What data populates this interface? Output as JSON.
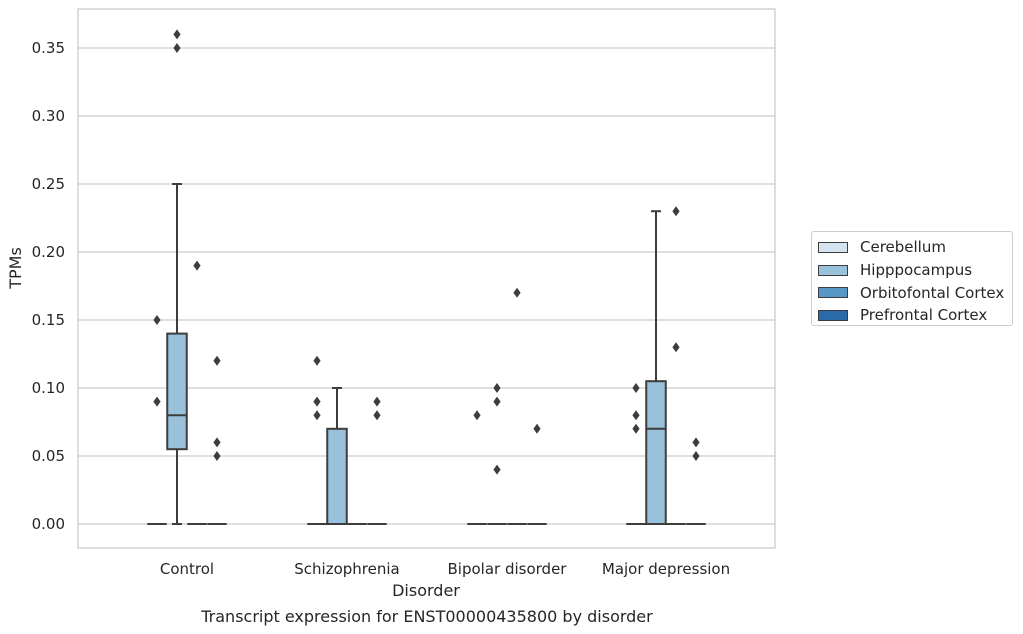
{
  "chart_data": {
    "type": "box",
    "title": "",
    "caption": "Transcript expression for ENST00000435800 by disorder",
    "xlabel": "Disorder",
    "ylabel": "TPMs",
    "ylim": [
      -0.018,
      0.378
    ],
    "yticks": [
      "0.00",
      "0.05",
      "0.10",
      "0.15",
      "0.20",
      "0.25",
      "0.30",
      "0.35"
    ],
    "ytick_values": [
      0,
      0.05,
      0.1,
      0.15,
      0.2,
      0.25,
      0.3,
      0.35
    ],
    "grid": "horizontal",
    "legend_position": "outside-right",
    "categories": [
      "Control",
      "Schizophrenia",
      "Bipolar disorder",
      "Major depression"
    ],
    "series": [
      {
        "name": "Cerebellum",
        "color": "#d6e4f2",
        "boxes": [
          {
            "q1": 0,
            "median": 0,
            "q3": 0,
            "whisker_low": 0,
            "whisker_high": 0,
            "outliers": [
              0.09,
              0.15
            ]
          },
          {
            "q1": 0,
            "median": 0,
            "q3": 0,
            "whisker_low": 0,
            "whisker_high": 0,
            "outliers": [
              0.08,
              0.09,
              0.12
            ]
          },
          {
            "q1": 0,
            "median": 0,
            "q3": 0,
            "whisker_low": 0,
            "whisker_high": 0,
            "outliers": [
              0.08
            ]
          },
          {
            "q1": 0,
            "median": 0,
            "q3": 0,
            "whisker_low": 0,
            "whisker_high": 0,
            "outliers": [
              0.07,
              0.08,
              0.1
            ]
          }
        ]
      },
      {
        "name": "Hipppocampus",
        "color": "#9ac1dc",
        "boxes": [
          {
            "q1": 0.055,
            "median": 0.08,
            "q3": 0.14,
            "whisker_low": 0,
            "whisker_high": 0.25,
            "outliers": [
              0.35,
              0.36
            ]
          },
          {
            "q1": 0,
            "median": 0,
            "q3": 0.07,
            "whisker_low": 0,
            "whisker_high": 0.1,
            "outliers": []
          },
          {
            "q1": 0,
            "median": 0,
            "q3": 0,
            "whisker_low": 0,
            "whisker_high": 0,
            "outliers": [
              0.04,
              0.09,
              0.1
            ]
          },
          {
            "q1": 0,
            "median": 0.07,
            "q3": 0.105,
            "whisker_low": 0,
            "whisker_high": 0.23,
            "outliers": []
          }
        ]
      },
      {
        "name": "Orbitofontal Cortex",
        "color": "#5796c5",
        "boxes": [
          {
            "q1": 0,
            "median": 0,
            "q3": 0,
            "whisker_low": 0,
            "whisker_high": 0,
            "outliers": [
              0.19
            ]
          },
          {
            "q1": 0,
            "median": 0,
            "q3": 0,
            "whisker_low": 0,
            "whisker_high": 0,
            "outliers": []
          },
          {
            "q1": 0,
            "median": 0,
            "q3": 0,
            "whisker_low": 0,
            "whisker_high": 0,
            "outliers": [
              0.17
            ]
          },
          {
            "q1": 0,
            "median": 0,
            "q3": 0,
            "whisker_low": 0,
            "whisker_high": 0,
            "outliers": [
              0.13,
              0.23
            ]
          }
        ]
      },
      {
        "name": "Prefrontal Cortex",
        "color": "#2b6aa9",
        "boxes": [
          {
            "q1": 0,
            "median": 0,
            "q3": 0,
            "whisker_low": 0,
            "whisker_high": 0,
            "outliers": [
              0.05,
              0.06,
              0.12
            ]
          },
          {
            "q1": 0,
            "median": 0,
            "q3": 0,
            "whisker_low": 0,
            "whisker_high": 0,
            "outliers": [
              0.08,
              0.09
            ]
          },
          {
            "q1": 0,
            "median": 0,
            "q3": 0,
            "whisker_low": 0,
            "whisker_high": 0,
            "outliers": [
              0.07
            ]
          },
          {
            "q1": 0,
            "median": 0,
            "q3": 0,
            "whisker_low": 0,
            "whisker_high": 0,
            "outliers": [
              0.05,
              0.06
            ]
          }
        ]
      }
    ]
  }
}
